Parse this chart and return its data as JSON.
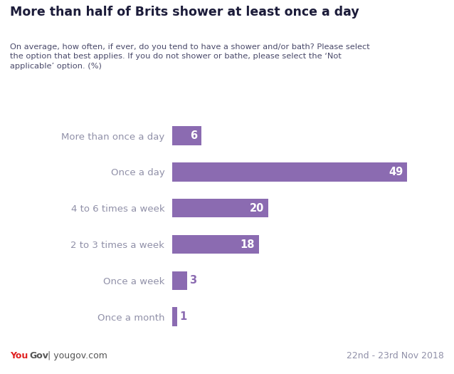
{
  "title": "More than half of Brits shower at least once a day",
  "subtitle": "On average, how often, if ever, do you tend to have a shower and/or bath? Please select\nthe option that best applies. If you do not shower or bathe, please select the ‘Not\napplicable’ option. (%)",
  "categories": [
    "More than once a day",
    "Once a day",
    "4 to 6 times a week",
    "2 to 3 times a week",
    "Once a week",
    "Once a month"
  ],
  "values": [
    6,
    49,
    20,
    18,
    3,
    1
  ],
  "bar_color": "#8B6BB1",
  "label_color_inside": "#ffffff",
  "label_color_outside": "#8B6BB1",
  "plot_bg_color": "#ffffff",
  "title_color": "#1c1c3a",
  "subtitle_color": "#4a4a6a",
  "category_color": "#9090a8",
  "footer_right": "22nd - 23rd Nov 2018",
  "yougov_you_color": "#e02020",
  "yougov_gov_color": "#555555",
  "header_bg_color": "#eeeef5"
}
